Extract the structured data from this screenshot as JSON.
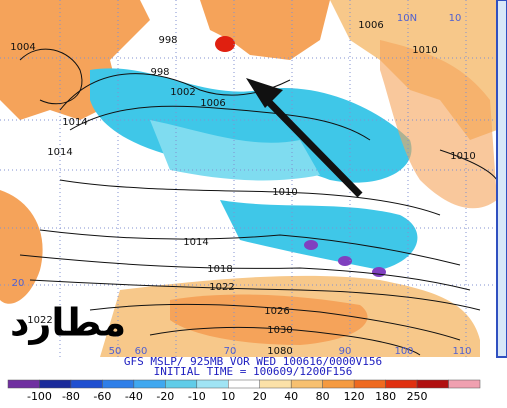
{
  "map": {
    "arabic_mark": "مطارد",
    "caption_line1": "GFS MSLP/ 925MB VOR WED 100616/0000V156",
    "caption_line2": "INITIAL TIME = 100609/1200F156",
    "isobar_labels": [
      "998",
      "998",
      "1002",
      "1006",
      "1010",
      "1014",
      "1018",
      "1022",
      "1026",
      "1030",
      "1006",
      "1010",
      "1014",
      "1014",
      "1004",
      "1022",
      "1010",
      "1080"
    ],
    "grid_labels": [
      "10N",
      "10",
      "50",
      "60",
      "70",
      "90",
      "100",
      "110",
      "20"
    ],
    "colorbar_labels": [
      "-100",
      "-80",
      "-60",
      "-40",
      "-20",
      "-10",
      "10",
      "20",
      "40",
      "80",
      "120",
      "180",
      "250"
    ]
  }
}
